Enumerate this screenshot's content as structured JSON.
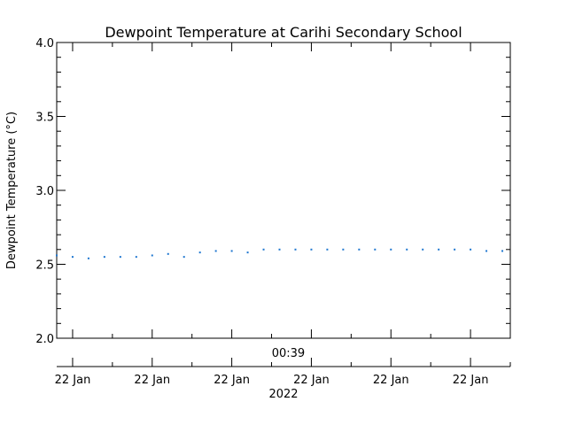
{
  "chart_data": {
    "type": "scatter",
    "title": "Dewpoint Temperature at Carihi Secondary School",
    "ylabel": "Dewpoint Temperature (°C)",
    "xlabel": "2022",
    "ylim": [
      2.0,
      4.0
    ],
    "yticks": [
      2.0,
      2.5,
      3.0,
      3.5,
      4.0
    ],
    "ytick_labels": [
      "2.0",
      "2.5",
      "3.0",
      "3.5",
      "4.0"
    ],
    "x_range_minutes": [
      0,
      57
    ],
    "xticks_minutes": [
      2,
      12,
      22,
      32,
      42,
      52
    ],
    "xtick_labels": [
      "22 Jan",
      "22 Jan",
      "22 Jan",
      "22 Jan",
      "22 Jan",
      "22 Jan"
    ],
    "time_label": "00:39",
    "time_label_minute": 32,
    "grid": false,
    "marker_color": "#1f77d0",
    "points": [
      {
        "x": 0,
        "y": 2.56
      },
      {
        "x": 2,
        "y": 2.55
      },
      {
        "x": 4,
        "y": 2.54
      },
      {
        "x": 6,
        "y": 2.55
      },
      {
        "x": 8,
        "y": 2.55
      },
      {
        "x": 10,
        "y": 2.55
      },
      {
        "x": 12,
        "y": 2.56
      },
      {
        "x": 14,
        "y": 2.57
      },
      {
        "x": 16,
        "y": 2.55
      },
      {
        "x": 18,
        "y": 2.58
      },
      {
        "x": 20,
        "y": 2.59
      },
      {
        "x": 22,
        "y": 2.59
      },
      {
        "x": 24,
        "y": 2.58
      },
      {
        "x": 26,
        "y": 2.6
      },
      {
        "x": 28,
        "y": 2.6
      },
      {
        "x": 30,
        "y": 2.6
      },
      {
        "x": 32,
        "y": 2.6
      },
      {
        "x": 34,
        "y": 2.6
      },
      {
        "x": 36,
        "y": 2.6
      },
      {
        "x": 38,
        "y": 2.6
      },
      {
        "x": 40,
        "y": 2.6
      },
      {
        "x": 42,
        "y": 2.6
      },
      {
        "x": 44,
        "y": 2.6
      },
      {
        "x": 46,
        "y": 2.6
      },
      {
        "x": 48,
        "y": 2.6
      },
      {
        "x": 50,
        "y": 2.6
      },
      {
        "x": 52,
        "y": 2.6
      },
      {
        "x": 54,
        "y": 2.59
      },
      {
        "x": 56,
        "y": 2.59
      }
    ]
  }
}
